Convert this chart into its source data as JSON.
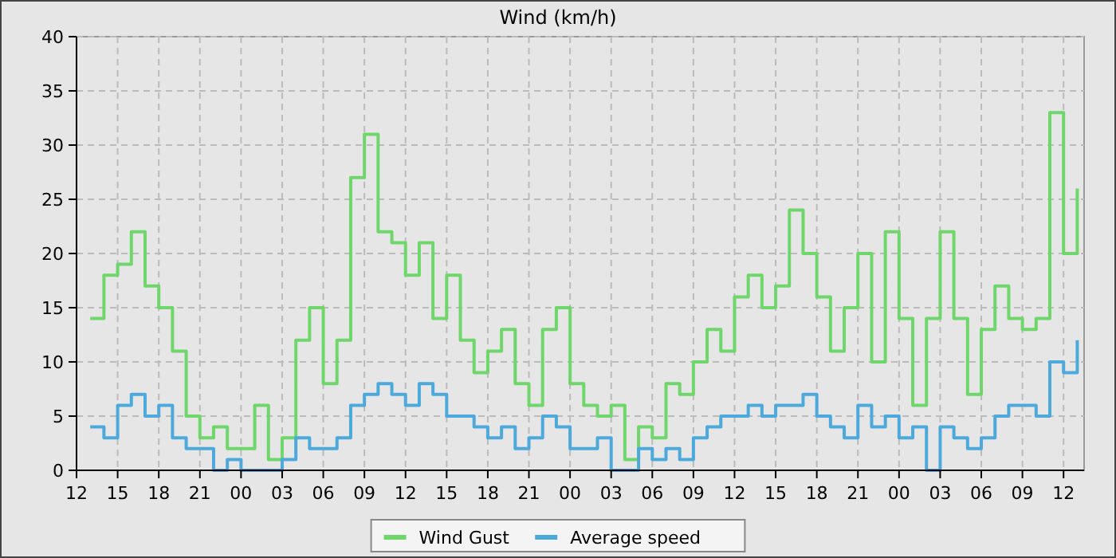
{
  "chart_data": {
    "type": "step",
    "title": "Wind (km/h)",
    "x": [
      13,
      14,
      15,
      16,
      17,
      18,
      19,
      20,
      21,
      22,
      23,
      24,
      25,
      26,
      27,
      28,
      29,
      30,
      31,
      32,
      33,
      34,
      35,
      36,
      37,
      38,
      39,
      40,
      41,
      42,
      43,
      44,
      45,
      46,
      47,
      48,
      49,
      50,
      51,
      52,
      53,
      54,
      55,
      56,
      57,
      58,
      59,
      60,
      61,
      62,
      63,
      64,
      65,
      66,
      67,
      68,
      69,
      70,
      71,
      72,
      73,
      74,
      75,
      76,
      77,
      78,
      79,
      80,
      81,
      82,
      83,
      84,
      85
    ],
    "series": [
      {
        "name": "Wind Gust",
        "color": "#6fd66b",
        "values": [
          14,
          18,
          19,
          22,
          17,
          15,
          11,
          5,
          3,
          4,
          2,
          2,
          6,
          1,
          3,
          12,
          15,
          8,
          12,
          27,
          31,
          22,
          21,
          18,
          21,
          14,
          18,
          12,
          9,
          11,
          13,
          8,
          6,
          13,
          15,
          8,
          6,
          5,
          6,
          1,
          4,
          3,
          8,
          7,
          10,
          13,
          11,
          16,
          18,
          15,
          17,
          24,
          20,
          16,
          11,
          15,
          20,
          10,
          22,
          14,
          6,
          14,
          22,
          14,
          7,
          13,
          17,
          14,
          13,
          14,
          33,
          20,
          26
        ]
      },
      {
        "name": "Average speed",
        "color": "#4da9db",
        "values": [
          4,
          3,
          6,
          7,
          5,
          6,
          3,
          2,
          2,
          0,
          1,
          0,
          0,
          0,
          1,
          3,
          2,
          2,
          3,
          6,
          7,
          8,
          7,
          6,
          8,
          7,
          5,
          5,
          4,
          3,
          4,
          2,
          3,
          5,
          4,
          2,
          2,
          3,
          0,
          0,
          2,
          1,
          2,
          1,
          3,
          4,
          5,
          5,
          6,
          5,
          6,
          6,
          7,
          5,
          4,
          3,
          6,
          4,
          5,
          3,
          4,
          0,
          4,
          3,
          2,
          3,
          5,
          6,
          6,
          5,
          10,
          9,
          12
        ]
      }
    ],
    "xlim": [
      12,
      85.5
    ],
    "xticks": [
      12,
      15,
      18,
      21,
      {
        "value": 24,
        "label": "00"
      },
      {
        "value": 27,
        "label": "03"
      },
      {
        "value": 30,
        "label": "06"
      },
      {
        "value": 33,
        "label": "09"
      },
      {
        "value": 36,
        "label": "12"
      },
      {
        "value": 39,
        "label": "15"
      },
      {
        "value": 42,
        "label": "18"
      },
      {
        "value": 45,
        "label": "21"
      },
      {
        "value": 48,
        "label": "00"
      },
      {
        "value": 51,
        "label": "03"
      },
      {
        "value": 54,
        "label": "06"
      },
      {
        "value": 57,
        "label": "09"
      },
      {
        "value": 60,
        "label": "12"
      },
      {
        "value": 63,
        "label": "15"
      },
      {
        "value": 66,
        "label": "18"
      },
      {
        "value": 69,
        "label": "21"
      },
      {
        "value": 72,
        "label": "00"
      },
      {
        "value": 75,
        "label": "03"
      },
      {
        "value": 78,
        "label": "06"
      },
      {
        "value": 81,
        "label": "09"
      },
      {
        "value": 84,
        "label": "12"
      }
    ],
    "ylim": [
      0,
      40
    ],
    "yticks": [
      0,
      5,
      10,
      15,
      20,
      25,
      30,
      35,
      40
    ],
    "grid": true,
    "legend": "bottom"
  }
}
